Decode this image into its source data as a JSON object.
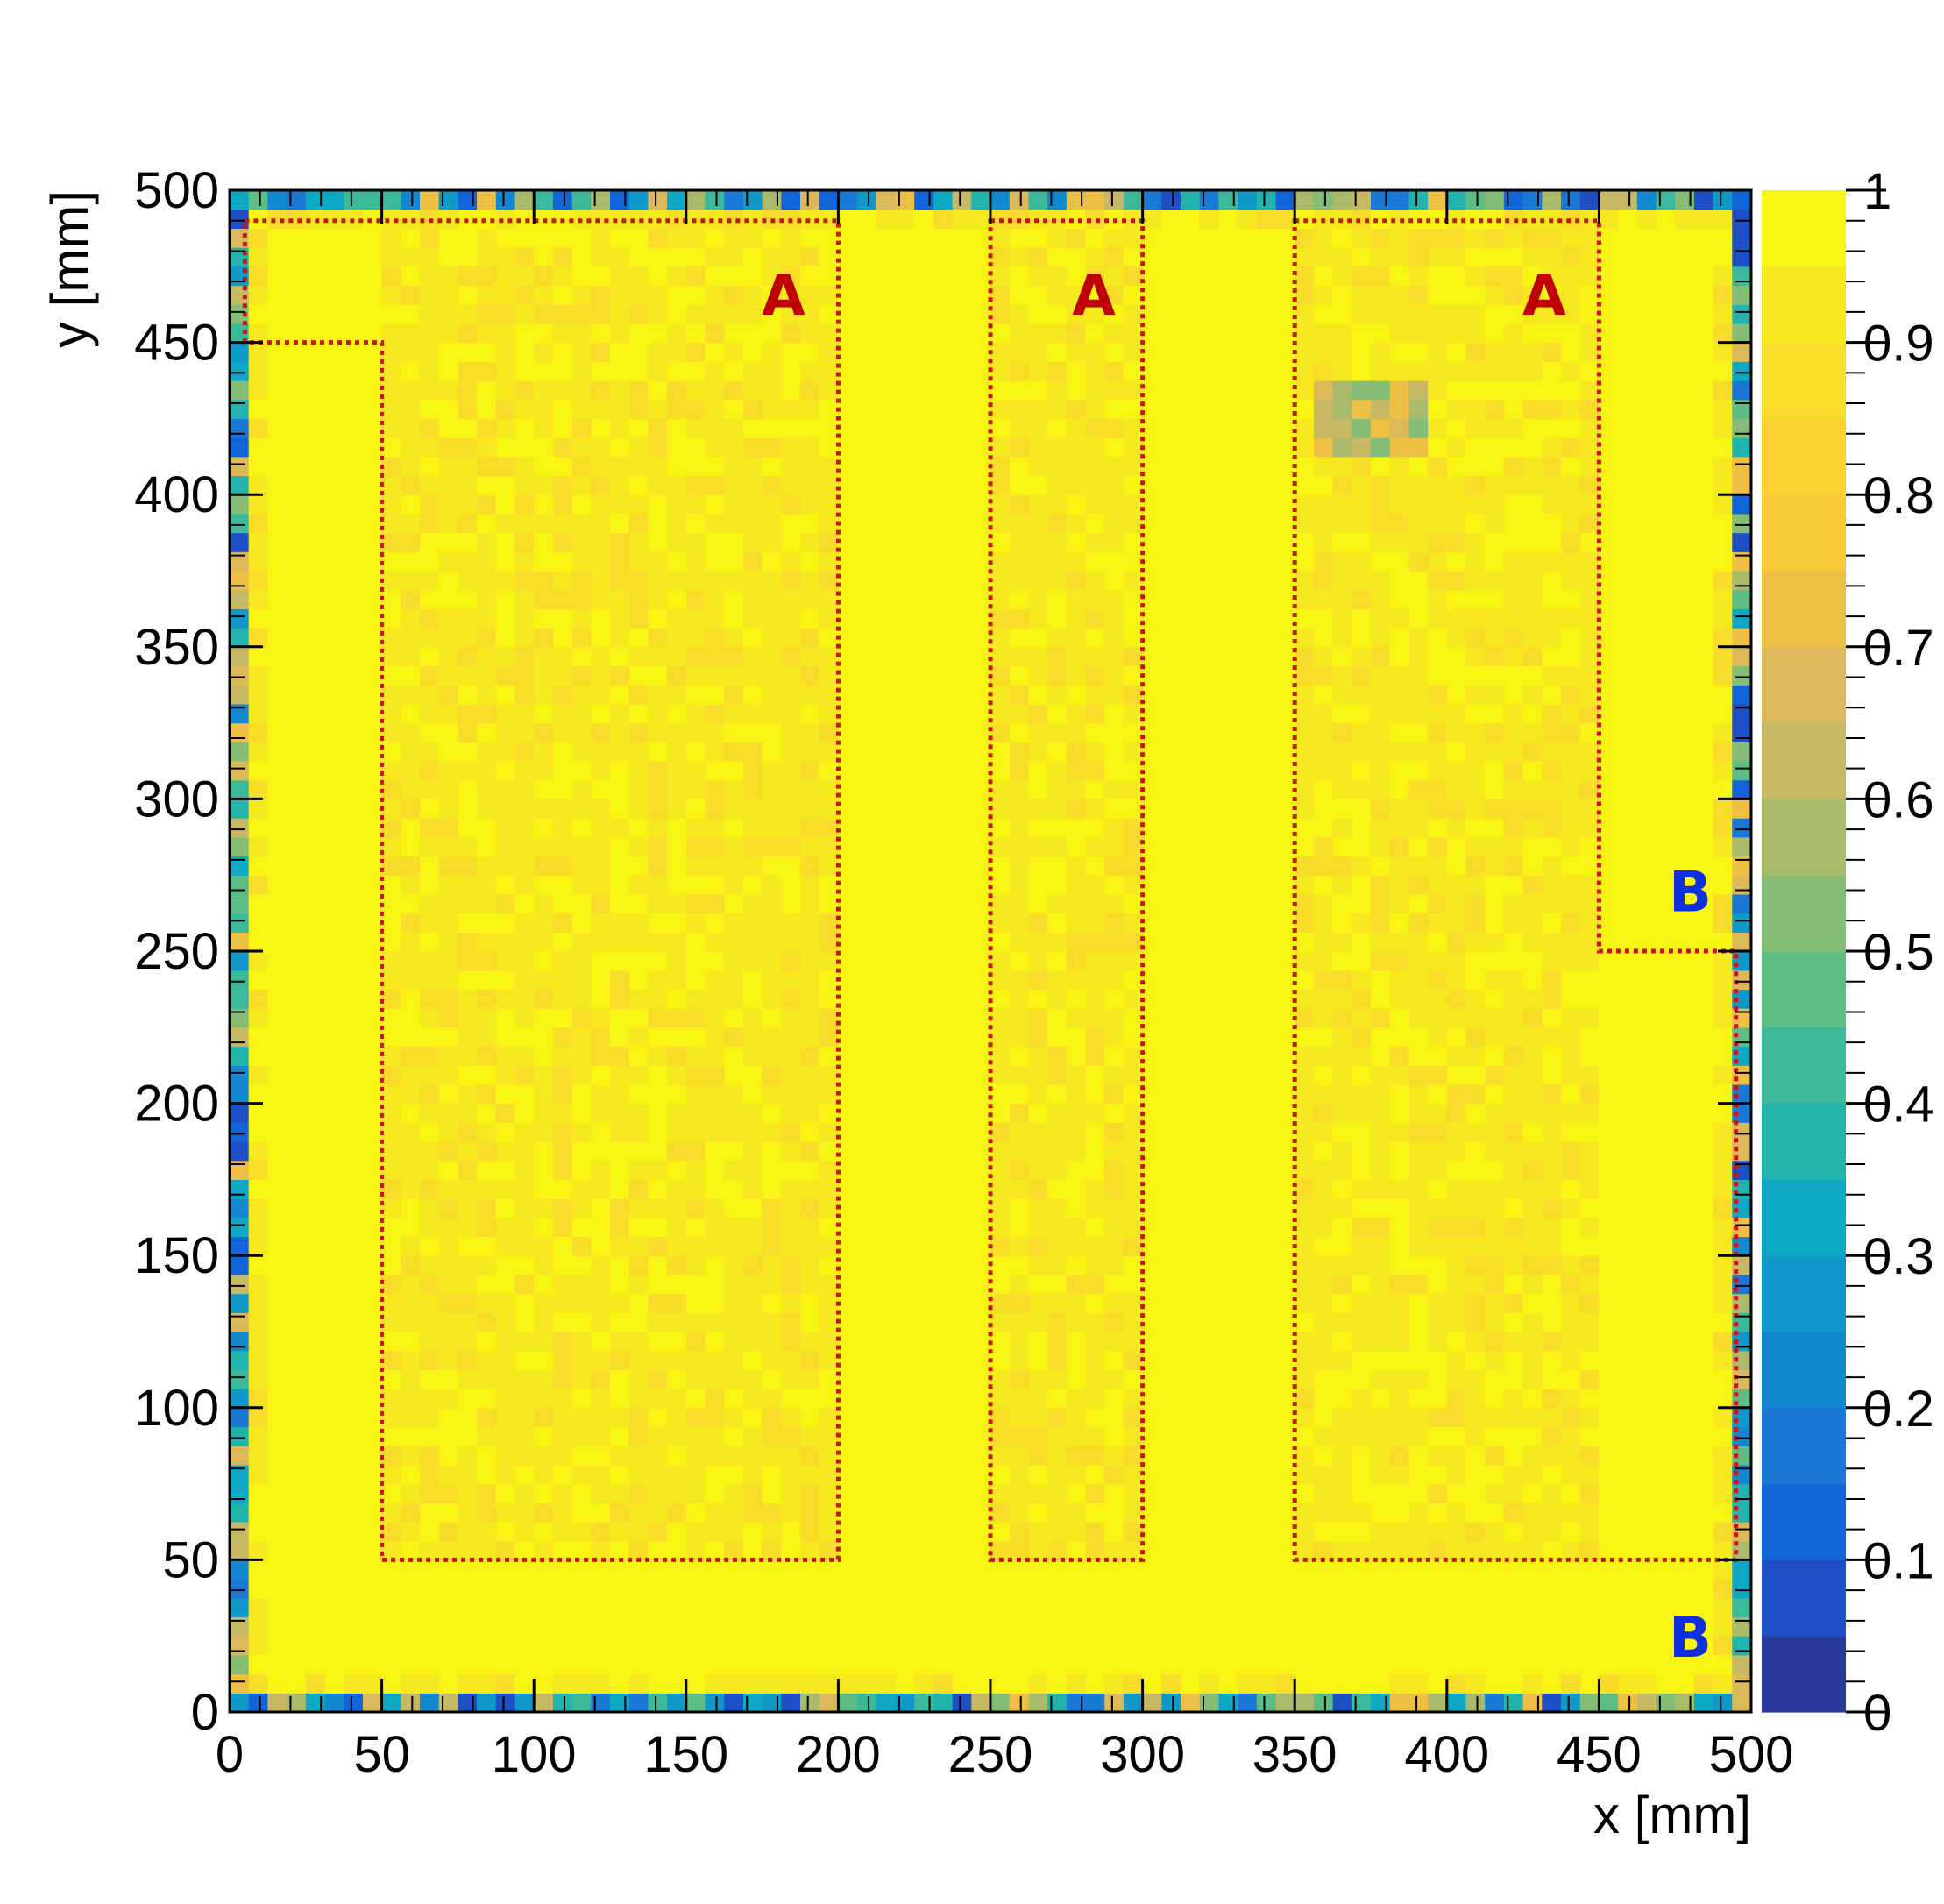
{
  "chart_data": {
    "type": "heatmap",
    "xlabel": "x [mm]",
    "ylabel": "y [mm]",
    "xlim": [
      0,
      500
    ],
    "ylim": [
      0,
      500
    ],
    "zlim": [
      0,
      1
    ],
    "x_ticks": [
      0,
      50,
      100,
      150,
      200,
      250,
      300,
      350,
      400,
      450,
      500
    ],
    "y_ticks": [
      0,
      50,
      100,
      150,
      200,
      250,
      300,
      350,
      400,
      450,
      500
    ],
    "x_tick_labels": [
      "0",
      "50",
      "100",
      "150",
      "200",
      "250",
      "300",
      "350",
      "400",
      "450",
      "500"
    ],
    "y_tick_labels": [
      "0",
      "50",
      "100",
      "150",
      "200",
      "250",
      "300",
      "350",
      "400",
      "450",
      "500"
    ],
    "colorbar_ticks": [
      0,
      0.1,
      0.2,
      0.3,
      0.4,
      0.5,
      0.6,
      0.7,
      0.8,
      0.9,
      1
    ],
    "colorbar_tick_labels": [
      "0",
      "0.1",
      "0.2",
      "0.3",
      "0.4",
      "0.5",
      "0.6",
      "0.7",
      "0.8",
      "0.9",
      "1"
    ],
    "colorbar_colors": [
      "#2a3a9c",
      "#1f4fc4",
      "#1265d8",
      "#1b78d4",
      "#1488cf",
      "#0f98c8",
      "#0ea8c4",
      "#23b3ad",
      "#3cb99a",
      "#5dbd85",
      "#86bd76",
      "#a9bb6a",
      "#c6b865",
      "#dbb95a",
      "#eebf45",
      "#f9c93a",
      "#fbd231",
      "#f8dc2a",
      "#f6e81f",
      "#f8f414"
    ],
    "grid": false,
    "bin_size_mm": 6.25,
    "value_regions": {
      "background": 0.99,
      "region_A": 0.93,
      "detector_edge": [
        0.05,
        0.75
      ],
      "hot_spot": {
        "x": [
          355,
          395
        ],
        "y": [
          410,
          435
        ],
        "value": 0.5
      }
    },
    "regions_A": [
      {
        "label": "A",
        "x": [
          50,
          200
        ],
        "y": [
          50,
          490
        ],
        "notch": {
          "x": [
            5,
            50
          ],
          "y": [
            450,
            490
          ]
        }
      },
      {
        "label": "A",
        "x": [
          250,
          300
        ],
        "y": [
          50,
          490
        ]
      },
      {
        "label": "A",
        "x": [
          350,
          450
        ],
        "y": [
          50,
          490
        ],
        "notch": {
          "x": [
            450,
            495
          ],
          "y": [
            50,
            250
          ]
        }
      }
    ],
    "region_labels": [
      {
        "text": "A",
        "x": 182,
        "y": 466
      },
      {
        "text": "A",
        "x": 284,
        "y": 466
      },
      {
        "text": "A",
        "x": 432,
        "y": 466
      },
      {
        "text": "B",
        "x": 480,
        "y": 270
      },
      {
        "text": "B",
        "x": 480,
        "y": 25
      }
    ],
    "label_colors": {
      "A": "#c00000",
      "B": "#1030e0"
    },
    "outline_color": "#c81414"
  }
}
